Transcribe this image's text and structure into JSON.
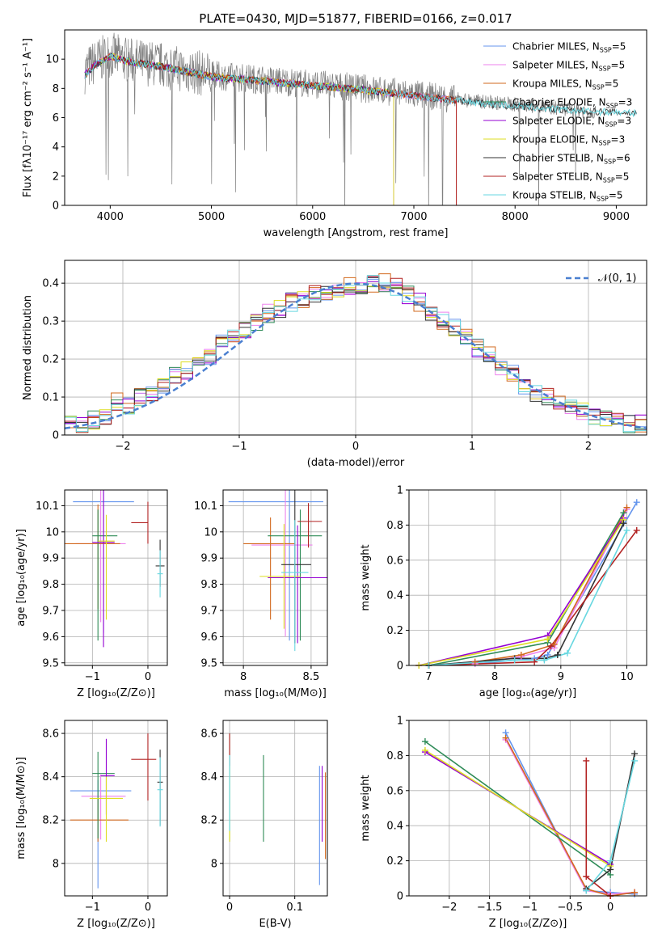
{
  "title": "PLATE=0430, MJD=51877, FIBERID=0166, z=0.017",
  "models": [
    {
      "label": "Chabrier MILES, N",
      "sub": "SSP",
      "suffix": "=5",
      "color": "#6495ed"
    },
    {
      "label": "Salpeter MILES, N",
      "sub": "SSP",
      "suffix": "=5",
      "color": "#ee82ee"
    },
    {
      "label": "Kroupa MILES, N",
      "sub": "SSP",
      "suffix": "=5",
      "color": "#d2691e"
    },
    {
      "label": "Chabrier ELODIE, N",
      "sub": "SSP",
      "suffix": "=3",
      "color": "#2e8b57"
    },
    {
      "label": "Salpeter ELODIE, N",
      "sub": "SSP",
      "suffix": "=3",
      "color": "#9400d3"
    },
    {
      "label": "Kroupa ELODIE, N",
      "sub": "SSP",
      "suffix": "=3",
      "color": "#dddd22"
    },
    {
      "label": "Chabrier STELIB, N",
      "sub": "SSP",
      "suffix": "=6",
      "color": "#333333"
    },
    {
      "label": "Salpeter STELIB, N",
      "sub": "SSP",
      "suffix": "=5",
      "color": "#b22222"
    },
    {
      "label": "Kroupa STELIB, N",
      "sub": "SSP",
      "suffix": "=5",
      "color": "#67d7e0"
    }
  ],
  "chart_data": [
    {
      "type": "line",
      "id": "spectrum",
      "xlabel": "wavelength [Angstrom, rest frame]",
      "ylabel": "Flux [fλ10⁻¹⁷ erg cm⁻² s⁻¹ A⁻¹]",
      "xlim": [
        3550,
        9300
      ],
      "ylim": [
        0,
        12
      ],
      "xticks": [
        4000,
        5000,
        6000,
        7000,
        8000,
        9000
      ],
      "yticks": [
        0,
        2,
        4,
        6,
        8,
        10
      ],
      "data_color": "#808080",
      "data_continuum": [
        [
          3750,
          9.2
        ],
        [
          3850,
          9.8
        ],
        [
          4000,
          10.3
        ],
        [
          4200,
          9.9
        ],
        [
          4500,
          9.6
        ],
        [
          5000,
          8.9
        ],
        [
          5500,
          8.6
        ],
        [
          6000,
          8.3
        ],
        [
          6500,
          8.0
        ],
        [
          7000,
          7.6
        ],
        [
          7500,
          7.2
        ],
        [
          8000,
          6.9
        ],
        [
          8500,
          6.6
        ],
        [
          8800,
          6.4
        ]
      ],
      "model_continuum": [
        [
          3750,
          8.9
        ],
        [
          3850,
          9.6
        ],
        [
          4000,
          10.2
        ],
        [
          4200,
          9.8
        ],
        [
          4500,
          9.5
        ],
        [
          5000,
          8.8
        ],
        [
          5500,
          8.5
        ],
        [
          6000,
          8.2
        ],
        [
          6500,
          7.9
        ],
        [
          7000,
          7.5
        ],
        [
          7500,
          7.1
        ],
        [
          8000,
          6.8
        ],
        [
          8500,
          6.5
        ],
        [
          9200,
          6.3
        ]
      ]
    },
    {
      "type": "line",
      "id": "residuals",
      "xlabel": "(data-model)/error",
      "ylabel": "Normed distribution",
      "xlim": [
        -2.5,
        2.5
      ],
      "ylim": [
        0,
        0.46
      ],
      "xticks": [
        -2,
        -1,
        0,
        1,
        2
      ],
      "yticks": [
        0,
        0.1,
        0.2,
        0.3,
        0.4
      ],
      "legend": "𝒩(0, 1)",
      "legend_color": "#4a7fd0",
      "bin_width": 0.1,
      "hist_centers": [
        -2.45,
        -2.35,
        -2.25,
        -2.15,
        -2.05,
        -1.95,
        -1.85,
        -1.75,
        -1.65,
        -1.55,
        -1.45,
        -1.35,
        -1.25,
        -1.15,
        -1.05,
        -0.95,
        -0.85,
        -0.75,
        -0.65,
        -0.55,
        -0.45,
        -0.35,
        -0.25,
        -0.15,
        -0.05,
        0.05,
        0.15,
        0.25,
        0.35,
        0.45,
        0.55,
        0.65,
        0.75,
        0.85,
        0.95,
        1.05,
        1.15,
        1.25,
        1.35,
        1.45,
        1.55,
        1.65,
        1.75,
        1.85,
        1.95,
        2.05,
        2.15,
        2.25,
        2.35,
        2.45
      ],
      "hist_values": [
        0.03,
        0.03,
        0.04,
        0.05,
        0.09,
        0.08,
        0.1,
        0.11,
        0.13,
        0.16,
        0.17,
        0.19,
        0.21,
        0.24,
        0.26,
        0.28,
        0.3,
        0.32,
        0.33,
        0.35,
        0.36,
        0.37,
        0.38,
        0.38,
        0.39,
        0.39,
        0.4,
        0.4,
        0.39,
        0.37,
        0.35,
        0.32,
        0.3,
        0.28,
        0.26,
        0.23,
        0.21,
        0.18,
        0.16,
        0.13,
        0.11,
        0.1,
        0.08,
        0.07,
        0.06,
        0.05,
        0.04,
        0.04,
        0.03,
        0.03
      ]
    },
    {
      "type": "scatter",
      "id": "z-age",
      "xlabel": "Z [log₁₀(Z/Z⊙)]",
      "ylabel": "age  [log₁₀(age/yr)]",
      "xlim": [
        -1.5,
        0.35
      ],
      "ylim": [
        9.49,
        10.16
      ],
      "xticks": [
        -1,
        0
      ],
      "yticks": [
        9.5,
        9.6,
        9.7,
        9.8,
        9.9,
        10.0,
        10.1
      ],
      "points": [
        {
          "x": -0.8,
          "y": 10.115,
          "xerr": [
            0.55,
            0.55
          ],
          "yerr": [
            0.5,
            0.5
          ]
        },
        {
          "x": -0.85,
          "y": 9.955,
          "xerr": [
            0.45,
            0.45
          ],
          "yerr": [
            0.3,
            0.3
          ]
        },
        {
          "x": -0.9,
          "y": 9.955,
          "xerr": [
            0.6,
            0.4
          ],
          "yerr": [
            0.25,
            0.15
          ]
        },
        {
          "x": -0.9,
          "y": 9.985,
          "xerr": [
            0.1,
            0.35
          ],
          "yerr": [
            0.4,
            0.1
          ]
        },
        {
          "x": -0.8,
          "y": 9.96,
          "xerr": [
            0.2,
            0.2
          ],
          "yerr": [
            0.4,
            0.2
          ]
        },
        {
          "x": -0.75,
          "y": 9.965,
          "xerr": [
            0.15,
            0.15
          ],
          "yerr": [
            0.3,
            0.1
          ]
        },
        {
          "x": 0.22,
          "y": 9.87,
          "xerr": [
            0.08,
            0.08
          ],
          "yerr": [
            0.08,
            0.1
          ]
        },
        {
          "x": 0.0,
          "y": 10.035,
          "xerr": [
            0.3,
            0.0
          ],
          "yerr": [
            0.08,
            0.08
          ]
        },
        {
          "x": 0.22,
          "y": 9.84,
          "xerr": [
            0.05,
            0.05
          ],
          "yerr": [
            0.09,
            0.09
          ]
        }
      ]
    },
    {
      "type": "scatter",
      "id": "mass-age",
      "xlabel": "mass [log₁₀(M/M⊙)]",
      "ylabel": "",
      "xlim": [
        7.85,
        8.62
      ],
      "ylim": [
        9.49,
        10.16
      ],
      "xticks": [
        8.0,
        8.5
      ],
      "yticks": [
        9.5,
        9.6,
        9.7,
        9.8,
        9.9,
        10.0,
        10.1
      ],
      "points": [
        {
          "x": 8.34,
          "y": 10.115,
          "xerr": [
            0.45,
            0.25
          ],
          "yerr": [
            0.53,
            0.53
          ]
        },
        {
          "x": 8.31,
          "y": 9.95,
          "xerr": [
            0.25,
            0.2
          ],
          "yerr": [
            0.35,
            0.3
          ]
        },
        {
          "x": 8.2,
          "y": 9.955,
          "xerr": [
            0.2,
            0.18
          ],
          "yerr": [
            0.29,
            0.1
          ]
        },
        {
          "x": 8.42,
          "y": 9.985,
          "xerr": [
            0.24,
            0.16
          ],
          "yerr": [
            0.4,
            0.1
          ]
        },
        {
          "x": 8.4,
          "y": 9.825,
          "xerr": [
            0.22,
            0.25
          ],
          "yerr": [
            0.25,
            0.2
          ]
        },
        {
          "x": 8.3,
          "y": 9.83,
          "xerr": [
            0.18,
            0.12
          ],
          "yerr": [
            0.2,
            0.2
          ]
        },
        {
          "x": 8.38,
          "y": 9.875,
          "xerr": [
            0.1,
            0.12
          ],
          "yerr": [
            0.3,
            0.3
          ]
        },
        {
          "x": 8.48,
          "y": 10.04,
          "xerr": [
            0.08,
            0.1
          ],
          "yerr": [
            0.1,
            0.07
          ]
        },
        {
          "x": 8.38,
          "y": 9.845,
          "xerr": [
            0.1,
            0.1
          ],
          "yerr": [
            0.3,
            0.2
          ]
        }
      ]
    },
    {
      "type": "line",
      "id": "age-weight",
      "xlabel": "age  [log₁₀(age/yr)]",
      "ylabel": "mass weight",
      "xlim": [
        6.7,
        10.3
      ],
      "ylim": [
        0,
        1
      ],
      "xticks": [
        7,
        8,
        9,
        10
      ],
      "yticks": [
        0,
        0.2,
        0.4,
        0.6,
        0.8,
        1.0
      ],
      "series": [
        {
          "x": [
            7.0,
            7.7,
            8.6,
            8.8,
            10.15
          ],
          "y": [
            0.0,
            0.01,
            0.04,
            0.06,
            0.93
          ]
        },
        {
          "x": [
            7.0,
            7.7,
            8.4,
            8.9,
            10.0
          ],
          "y": [
            0.0,
            0.01,
            0.05,
            0.1,
            0.89
          ]
        },
        {
          "x": [
            7.0,
            7.7,
            8.4,
            8.9,
            10.0
          ],
          "y": [
            0.0,
            0.02,
            0.06,
            0.12,
            0.9
          ]
        },
        {
          "x": [
            7.0,
            8.8,
            9.95
          ],
          "y": [
            0.0,
            0.13,
            0.87
          ]
        },
        {
          "x": [
            6.85,
            8.8,
            9.95
          ],
          "y": [
            0.0,
            0.17,
            0.84
          ]
        },
        {
          "x": [
            6.85,
            8.8,
            9.95
          ],
          "y": [
            0.0,
            0.15,
            0.83
          ]
        },
        {
          "x": [
            7.0,
            8.3,
            8.75,
            8.95,
            9.95
          ],
          "y": [
            0.0,
            0.04,
            0.04,
            0.06,
            0.81
          ]
        },
        {
          "x": [
            7.0,
            8.6,
            8.85,
            10.15
          ],
          "y": [
            0.0,
            0.02,
            0.11,
            0.77
          ]
        },
        {
          "x": [
            7.0,
            8.3,
            8.75,
            9.1,
            10.0
          ],
          "y": [
            0.0,
            0.03,
            0.03,
            0.07,
            0.77
          ]
        }
      ]
    },
    {
      "type": "scatter",
      "id": "z-mass",
      "xlabel": "Z [log₁₀(Z/Z⊙)]",
      "ylabel": "mass [log₁₀(M/M⊙)]",
      "xlim": [
        -1.5,
        0.35
      ],
      "ylim": [
        7.85,
        8.66
      ],
      "xticks": [
        -1,
        0
      ],
      "yticks": [
        8.0,
        8.2,
        8.4,
        8.6
      ],
      "points": [
        {
          "x": -0.9,
          "y": 8.335,
          "xerr": [
            0.5,
            0.6
          ],
          "yerr": [
            0.45,
            0.05
          ]
        },
        {
          "x": -0.85,
          "y": 8.31,
          "xerr": [
            0.35,
            0.45
          ],
          "yerr": [
            0.2,
            0.1
          ]
        },
        {
          "x": -0.9,
          "y": 8.2,
          "xerr": [
            0.5,
            0.55
          ],
          "yerr": [
            0.1,
            0.1
          ]
        },
        {
          "x": -0.9,
          "y": 8.415,
          "xerr": [
            0.1,
            0.3
          ],
          "yerr": [
            0.3,
            0.1
          ]
        },
        {
          "x": -0.75,
          "y": 8.405,
          "xerr": [
            0.1,
            0.15
          ],
          "yerr": [
            0.18,
            0.17
          ]
        },
        {
          "x": -0.75,
          "y": 8.3,
          "xerr": [
            0.3,
            0.3
          ],
          "yerr": [
            0.2,
            0.1
          ]
        },
        {
          "x": 0.22,
          "y": 8.375,
          "xerr": [
            0.05,
            0.05
          ],
          "yerr": [
            0.2,
            0.15
          ]
        },
        {
          "x": 0.0,
          "y": 8.48,
          "xerr": [
            0.3,
            0.15
          ],
          "yerr": [
            0.19,
            0.12
          ]
        },
        {
          "x": 0.22,
          "y": 8.34,
          "xerr": [
            0.05,
            0.05
          ],
          "yerr": [
            0.17,
            0.15
          ]
        }
      ]
    },
    {
      "type": "scatter",
      "id": "ebv-mass",
      "xlabel": "E(B-V)",
      "ylabel": "",
      "xlim": [
        -0.01,
        0.15
      ],
      "ylim": [
        7.85,
        8.66
      ],
      "xticks": [
        0.0,
        0.1
      ],
      "yticks": [
        8.0,
        8.2,
        8.4,
        8.6
      ],
      "points": [
        {
          "x": 0.0,
          "y": 8.5,
          "color": 3,
          "yerr": [
            0.4,
            0.1
          ]
        },
        {
          "x": 0.0,
          "y": 8.55,
          "color": 7,
          "yerr": [
            0.1,
            0.05
          ]
        },
        {
          "x": 0.0,
          "y": 8.35,
          "color": 5,
          "yerr": [
            0.25,
            0.1
          ]
        },
        {
          "x": 0.0,
          "y": 8.3,
          "color": 8,
          "yerr": [
            0.15,
            0.2
          ]
        },
        {
          "x": 0.052,
          "y": 8.3,
          "color": 3,
          "yerr": [
            0.2,
            0.2
          ]
        },
        {
          "x": 0.138,
          "y": 8.2,
          "color": 0,
          "yerr": [
            0.3,
            0.25
          ]
        },
        {
          "x": 0.142,
          "y": 8.3,
          "color": 4,
          "yerr": [
            0.2,
            0.15
          ]
        },
        {
          "x": 0.147,
          "y": 8.22,
          "color": 2,
          "yerr": [
            0.2,
            0.2
          ]
        }
      ]
    },
    {
      "type": "line",
      "id": "z-weight",
      "xlabel": "Z [log₁₀(Z/Z⊙)]",
      "ylabel": "mass weight",
      "xlim": [
        -2.5,
        0.45
      ],
      "ylim": [
        0,
        1
      ],
      "xticks": [
        -2.0,
        -1.5,
        -1.0,
        -0.5,
        0.0
      ],
      "yticks": [
        0,
        0.2,
        0.4,
        0.6,
        0.8,
        1.0
      ],
      "series": [
        {
          "x": [
            -1.3,
            -0.3,
            0.0,
            0.3
          ],
          "y": [
            0.93,
            0.03,
            0.02,
            0.01
          ]
        },
        {
          "x": [
            -1.3,
            -0.3,
            0.0,
            0.3
          ],
          "y": [
            0.89,
            0.03,
            0.01,
            0.02
          ]
        },
        {
          "x": [
            -1.3,
            -0.3,
            0.0,
            0.3
          ],
          "y": [
            0.9,
            0.04,
            0.0,
            0.02
          ]
        },
        {
          "x": [
            -2.3,
            0.0
          ],
          "y": [
            0.88,
            0.12
          ]
        },
        {
          "x": [
            -2.3,
            0.0
          ],
          "y": [
            0.82,
            0.18
          ]
        },
        {
          "x": [
            -2.3,
            0.0
          ],
          "y": [
            0.83,
            0.17
          ]
        },
        {
          "x": [
            -0.3,
            0.0,
            0.3
          ],
          "y": [
            0.04,
            0.15,
            0.81
          ]
        },
        {
          "x": [
            -0.3,
            -0.3,
            0.0
          ],
          "y": [
            0.77,
            0.11,
            0.0
          ]
        },
        {
          "x": [
            -0.3,
            0.0,
            0.3
          ],
          "y": [
            0.03,
            0.2,
            0.77
          ]
        }
      ]
    }
  ]
}
